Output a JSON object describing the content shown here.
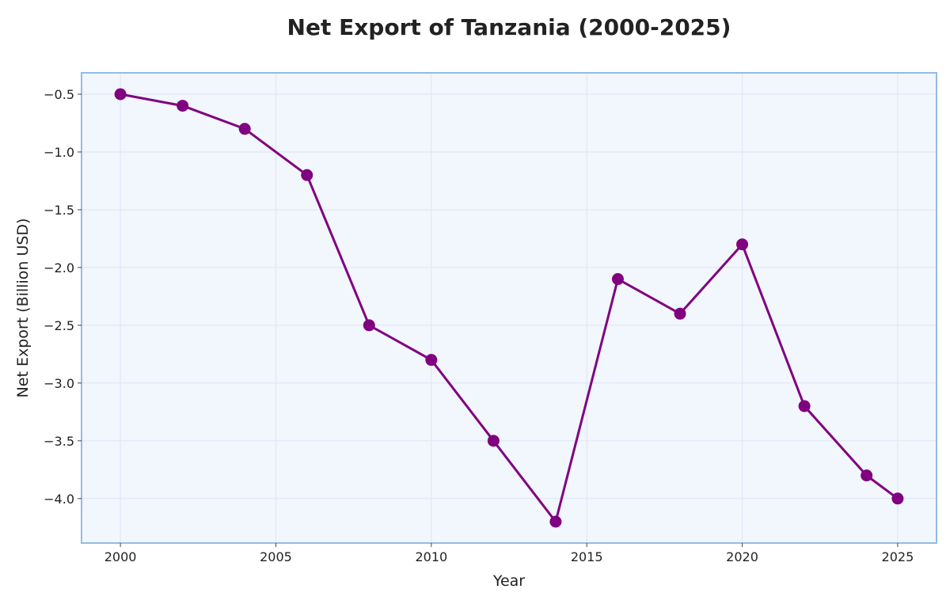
{
  "chart_data": {
    "type": "line",
    "title": "Net Export of Tanzania (2000-2025)",
    "xlabel": "Year",
    "ylabel": "Net Export (Billion USD)",
    "x": [
      2000,
      2002,
      2004,
      2006,
      2008,
      2010,
      2012,
      2014,
      2016,
      2018,
      2020,
      2022,
      2024,
      2025
    ],
    "series": [
      {
        "values": [
          -0.5,
          -0.6,
          -0.8,
          -1.2,
          -2.5,
          -2.8,
          -3.5,
          -4.2,
          -2.1,
          -2.4,
          -1.8,
          -3.2,
          -3.8,
          -4.0
        ],
        "color": "#800080"
      }
    ],
    "xlim": [
      1998.75,
      2026.25
    ],
    "ylim": [
      -4.385,
      -0.315
    ],
    "xticks": [
      2000,
      2005,
      2010,
      2015,
      2020,
      2025
    ],
    "xtick_labels": [
      "2000",
      "2005",
      "2010",
      "2015",
      "2020",
      "2025"
    ],
    "yticks": [
      -0.5,
      -1.0,
      -1.5,
      -2.0,
      -2.5,
      -3.0,
      -3.5,
      -4.0
    ],
    "ytick_labels": [
      "−0.5",
      "−1.0",
      "−1.5",
      "−2.0",
      "−2.5",
      "−3.0",
      "−3.5",
      "−4.0"
    ],
    "grid": true,
    "colors": {
      "plot_background": "#f2f6fd",
      "plot_border": "#93bbe8",
      "line": "#800080"
    }
  }
}
